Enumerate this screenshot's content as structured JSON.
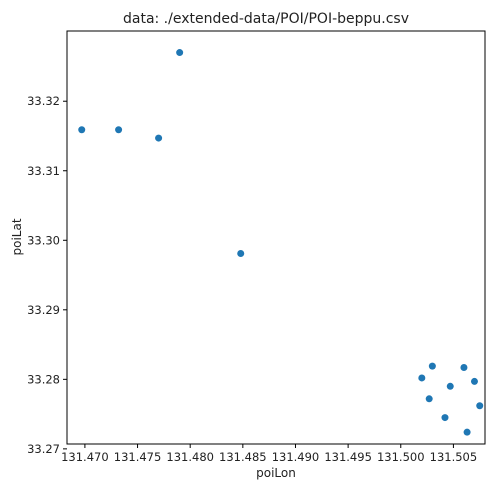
{
  "chart_data": {
    "type": "scatter",
    "title": "data: ./extended-data/POI/POI-beppu.csv",
    "xlabel": "poiLon",
    "ylabel": "poiLat",
    "xlim": [
      131.4683,
      131.508
    ],
    "ylim": [
      33.2707,
      33.3301
    ],
    "x_ticks": [
      131.47,
      131.475,
      131.48,
      131.485,
      131.49,
      131.495,
      131.5,
      131.505
    ],
    "x_tick_labels": [
      "131.470",
      "131.475",
      "131.480",
      "131.485",
      "131.490",
      "131.495",
      "131.500",
      "131.505"
    ],
    "y_ticks": [
      33.27,
      33.28,
      33.29,
      33.3,
      33.31,
      33.32
    ],
    "y_tick_labels": [
      "33.27",
      "33.28",
      "33.29",
      "33.30",
      "33.31",
      "33.32"
    ],
    "grid": false,
    "marker_color": "#1f77b4",
    "points": [
      {
        "x": 131.4697,
        "y": 33.3159
      },
      {
        "x": 131.4732,
        "y": 33.3159
      },
      {
        "x": 131.477,
        "y": 33.3147
      },
      {
        "x": 131.479,
        "y": 33.327
      },
      {
        "x": 131.4848,
        "y": 33.2981
      },
      {
        "x": 131.502,
        "y": 33.2802
      },
      {
        "x": 131.503,
        "y": 33.2819
      },
      {
        "x": 131.5027,
        "y": 33.2772
      },
      {
        "x": 131.5042,
        "y": 33.2745
      },
      {
        "x": 131.5047,
        "y": 33.279
      },
      {
        "x": 131.506,
        "y": 33.2817
      },
      {
        "x": 131.5063,
        "y": 33.2724
      },
      {
        "x": 131.507,
        "y": 33.2797
      },
      {
        "x": 131.5075,
        "y": 33.2762
      }
    ]
  }
}
